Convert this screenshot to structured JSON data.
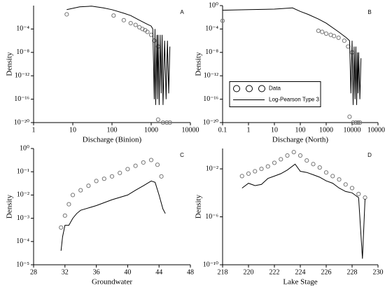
{
  "chart_data": [
    {
      "type": "line",
      "panel": "A",
      "x_label": "Discharge (Binion)",
      "y_label": "Density",
      "xlog": true,
      "ylog": true,
      "xlim": [
        1,
        10000
      ],
      "xticks": [
        1,
        10,
        100,
        1000,
        10000
      ],
      "ylim": [
        1e-20,
        1
      ],
      "yticks": [
        {
          "value": 0.0001,
          "label": "10⁻⁴"
        },
        {
          "value": 1e-08,
          "label": "10⁻⁸"
        },
        {
          "value": 1e-12,
          "label": "10⁻¹²"
        },
        {
          "value": 1e-16,
          "label": "10⁻¹⁶"
        },
        {
          "value": 1e-20,
          "label": "10⁻²⁰"
        }
      ],
      "series": [
        {
          "style": "markers",
          "color": "#777777",
          "x": [
            7,
            110,
            200,
            300,
            400,
            500,
            600,
            700,
            800,
            1000,
            1200,
            1500,
            1500,
            2000,
            2500,
            3000
          ],
          "values": [
            0.032,
            0.02,
            0.0032,
            0.001,
            0.0005,
            0.0002,
            0.0001,
            6.3e-05,
            3.2e-05,
            1e-05,
            1e-06,
            1e-07,
            3.2e-20,
            1e-20,
            1e-20,
            1e-20
          ]
        },
        {
          "style": "line",
          "color": "#000000",
          "x": [
            7,
            15,
            30,
            60,
            100,
            200,
            300,
            500,
            800,
            1000,
            1100,
            1200,
            1250,
            1300,
            1400,
            1450,
            1500,
            1600,
            1700,
            1800,
            1900,
            2000,
            2200,
            2400,
            2600,
            2800,
            3000
          ],
          "values": [
            0.2,
            0.63,
            0.8,
            0.4,
            0.2,
            0.05,
            0.02,
            0.0032,
            0.00063,
            0.00032,
            0.0001,
            1e-16,
            0.0001,
            1e-17,
            1e-05,
            1e-16,
            1e-05,
            1e-17,
            1e-05,
            1e-15,
            1e-05,
            1e-17,
            1e-06,
            1e-16,
            1e-06,
            1e-15,
            1e-07
          ]
        }
      ]
    },
    {
      "type": "line",
      "panel": "B",
      "x_label": "Discharge (North)",
      "y_label": "Density",
      "xlog": true,
      "ylog": true,
      "xlim": [
        0.1,
        100000
      ],
      "xticks": [
        0.1,
        1,
        10,
        100,
        1000,
        10000,
        100000
      ],
      "ylim": [
        1e-20,
        1
      ],
      "yticks": [
        {
          "value": 1,
          "label": "10⁰"
        },
        {
          "value": 0.0001,
          "label": "10⁻⁴"
        },
        {
          "value": 1e-08,
          "label": "10⁻⁸"
        },
        {
          "value": 1e-12,
          "label": "10⁻¹²"
        },
        {
          "value": 1e-16,
          "label": "10⁻¹⁶"
        },
        {
          "value": 1e-20,
          "label": "10⁻²⁰"
        }
      ],
      "legend": "center left",
      "series": [
        {
          "name": "Data",
          "style": "markers",
          "color": "#777777",
          "x": [
            0.1,
            500,
            700,
            1000,
            1500,
            2000,
            3000,
            5000,
            7000,
            10000,
            8000,
            11000,
            14000,
            17000,
            20000
          ],
          "values": [
            0.0025,
            5e-05,
            3.2e-05,
            1.6e-05,
            1e-05,
            6.3e-06,
            3.2e-06,
            1e-06,
            1e-07,
            1e-08,
            1e-19,
            1e-20,
            1e-20,
            1e-20,
            1e-20
          ]
        },
        {
          "name": "Log-Pearson Type 3",
          "style": "line",
          "color": "#000000",
          "x": [
            0.1,
            1,
            10,
            50,
            100,
            200,
            500,
            1000,
            3000,
            6000,
            8000,
            9000,
            10000,
            11000,
            12000,
            13000,
            14000,
            15000,
            16000,
            17000,
            18000,
            20000,
            22000
          ],
          "values": [
            0.16,
            0.2,
            0.25,
            0.4,
            0.1,
            0.032,
            0.005,
            0.001,
            3.2e-05,
            3.2e-06,
            1e-06,
            1e-15,
            1e-06,
            1e-17,
            1e-07,
            1e-16,
            1e-07,
            1e-17,
            1e-08,
            1e-15,
            1e-08,
            1e-16,
            1e-09
          ]
        }
      ]
    },
    {
      "type": "line",
      "panel": "C",
      "x_label": "Groundwater",
      "y_label": "Density",
      "xlog": false,
      "ylog": true,
      "xlim": [
        28,
        48
      ],
      "xticks": [
        28,
        32,
        36,
        40,
        44,
        48
      ],
      "ylim": [
        1e-05,
        1
      ],
      "yticks": [
        {
          "value": 1e-05,
          "label": "10⁻⁵"
        },
        {
          "value": 0.0001,
          "label": "10⁻⁴"
        },
        {
          "value": 0.001,
          "label": "10⁻³"
        },
        {
          "value": 0.01,
          "label": "10⁻²"
        },
        {
          "value": 0.1,
          "label": "10⁻¹"
        },
        {
          "value": 1,
          "label": "10⁰"
        }
      ],
      "series": [
        {
          "style": "markers",
          "color": "#777777",
          "x": [
            31.5,
            32,
            32.5,
            33,
            34,
            35,
            36,
            37,
            38,
            39,
            40,
            41,
            42,
            43,
            43.8,
            44.3
          ],
          "values": [
            0.0004,
            0.0013,
            0.004,
            0.01,
            0.016,
            0.025,
            0.04,
            0.05,
            0.063,
            0.089,
            0.13,
            0.18,
            0.25,
            0.32,
            0.2,
            0.063
          ]
        },
        {
          "style": "line",
          "color": "#000000",
          "x": [
            31.5,
            31.7,
            32,
            32.5,
            33,
            33.5,
            34,
            36,
            38,
            40,
            41,
            42,
            43,
            43.5,
            44,
            44.5,
            44.8
          ],
          "values": [
            4e-05,
            0.00016,
            0.0005,
            0.0005,
            0.001,
            0.0016,
            0.0022,
            0.0035,
            0.0063,
            0.01,
            0.016,
            0.025,
            0.04,
            0.035,
            0.01,
            0.0025,
            0.0016
          ]
        }
      ]
    },
    {
      "type": "line",
      "panel": "D",
      "x_label": "Lake Stage",
      "y_label": "Density",
      "xlog": false,
      "ylog": true,
      "xlim": [
        218,
        230
      ],
      "xticks": [
        218,
        220,
        222,
        224,
        226,
        228,
        230
      ],
      "ylim": [
        1e-10,
        0.5
      ],
      "yticks": [
        {
          "value": 0.01,
          "label": "10⁻²"
        },
        {
          "value": 1e-06,
          "label": "10⁻⁶"
        },
        {
          "value": 1e-10,
          "label": "10⁻¹⁰"
        }
      ],
      "series": [
        {
          "style": "markers",
          "color": "#777777",
          "x": [
            219.5,
            220,
            220.5,
            221,
            221.5,
            222,
            222.5,
            223,
            223.5,
            224,
            224.5,
            225,
            225.5,
            226,
            226.5,
            227,
            227.5,
            228,
            228.5,
            229
          ],
          "values": [
            0.0025,
            0.004,
            0.0063,
            0.01,
            0.016,
            0.032,
            0.063,
            0.13,
            0.25,
            0.13,
            0.05,
            0.025,
            0.013,
            0.005,
            0.0025,
            0.0013,
            0.0005,
            0.00025,
            8e-05,
            4e-05
          ]
        },
        {
          "style": "line",
          "color": "#000000",
          "x": [
            219.5,
            220,
            220.5,
            221,
            221.5,
            222,
            222.5,
            223,
            223.6,
            224,
            224.5,
            225,
            225.5,
            226,
            226.5,
            227,
            227.5,
            228,
            228.5,
            228.8,
            229
          ],
          "values": [
            0.00025,
            0.00063,
            0.0004,
            0.0005,
            0.0016,
            0.0025,
            0.004,
            0.008,
            0.025,
            0.0063,
            0.005,
            0.0032,
            0.002,
            0.001,
            0.00063,
            0.00025,
            0.00013,
            0.0001,
            4e-05,
            3.2e-10,
            3.2e-05
          ]
        }
      ]
    }
  ]
}
